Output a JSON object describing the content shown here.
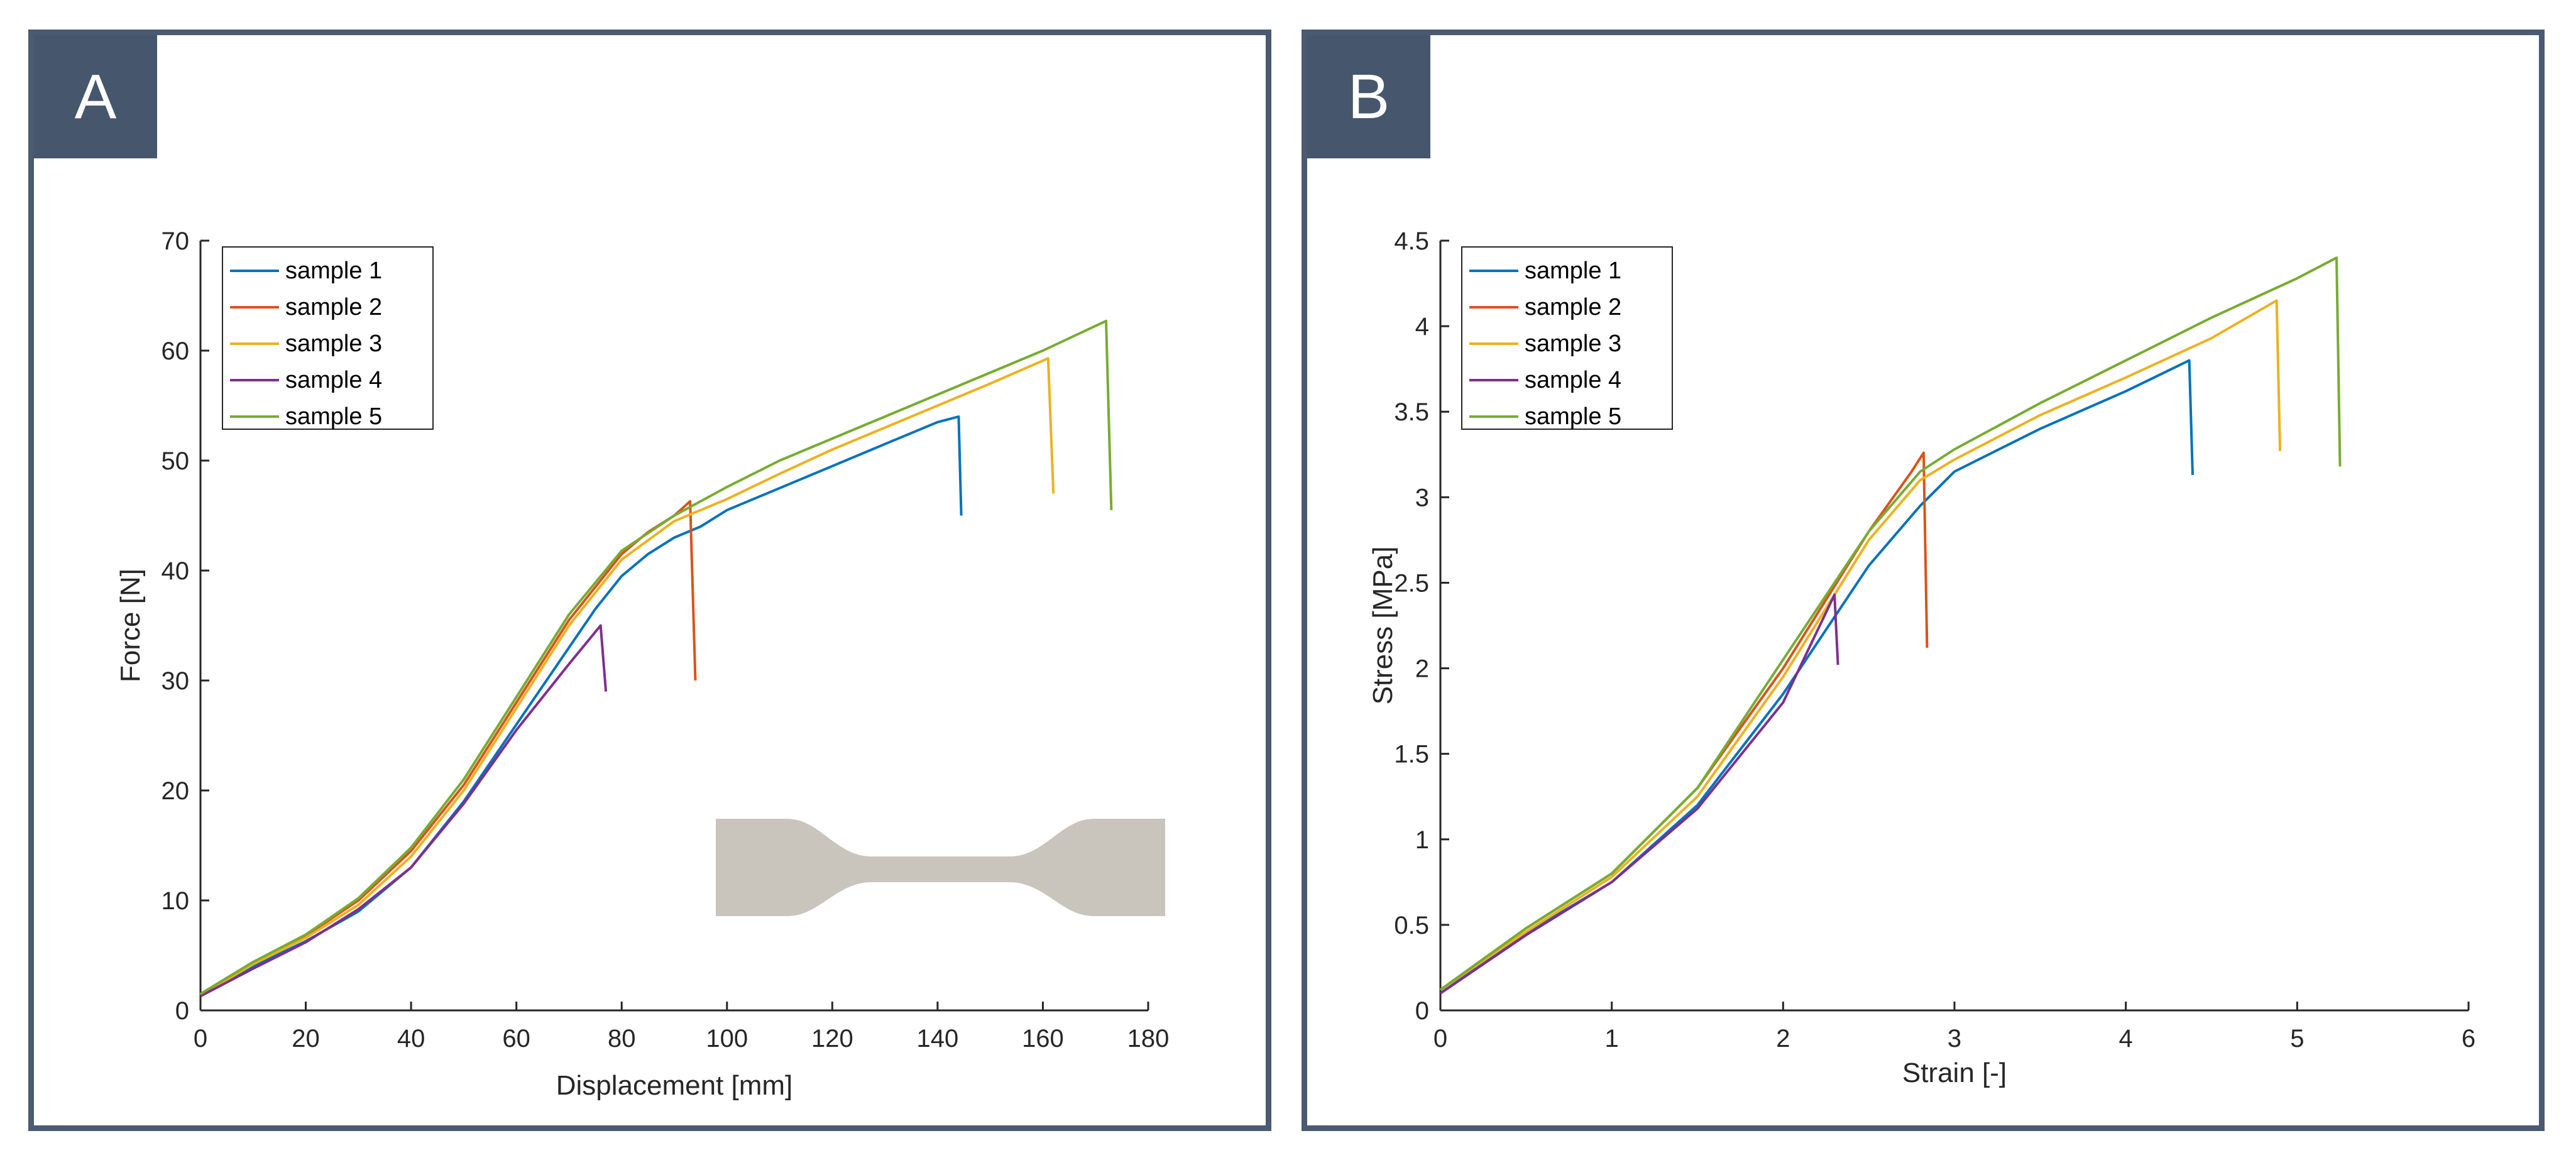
{
  "panels": [
    {
      "badge": "A"
    },
    {
      "badge": "B"
    }
  ],
  "colors": {
    "sample 1": "#0072BD",
    "sample 2": "#D95319",
    "sample 3": "#EDB120",
    "sample 4": "#7E2F8E",
    "sample 5": "#77AC30",
    "specimen": "#c9c5bd",
    "panel_border": "#4a5a72"
  },
  "chart_data": [
    {
      "type": "line",
      "panel": "A",
      "title": "",
      "xlabel": "Displacement [mm]",
      "ylabel": "Force [N]",
      "xlim": [
        0,
        180
      ],
      "ylim": [
        0,
        70
      ],
      "xticks": [
        "0",
        "20",
        "40",
        "60",
        "80",
        "100",
        "120",
        "140",
        "160",
        "180"
      ],
      "yticks": [
        "0",
        "10",
        "20",
        "30",
        "40",
        "50",
        "60",
        "70"
      ],
      "legend": [
        "sample 1",
        "sample 2",
        "sample 3",
        "sample 4",
        "sample 5"
      ],
      "legend_position": "top-left",
      "inset": "dog-bone specimen",
      "series": [
        {
          "name": "sample 1",
          "x": [
            0,
            10,
            20,
            30,
            40,
            50,
            60,
            70,
            75,
            80,
            85,
            90,
            95,
            100,
            110,
            120,
            130,
            140,
            144,
            144.5
          ],
          "y": [
            1.3,
            4,
            6.3,
            9,
            13,
            19,
            26,
            33,
            36.5,
            39.5,
            41.5,
            43,
            44,
            45.5,
            47.5,
            49.5,
            51.5,
            53.5,
            54,
            45
          ]
        },
        {
          "name": "sample 2",
          "x": [
            0,
            10,
            20,
            30,
            40,
            50,
            60,
            70,
            75,
            80,
            85,
            90,
            93,
            94
          ],
          "y": [
            1.5,
            4.4,
            6.8,
            10,
            14.5,
            20.5,
            28,
            35.5,
            38.5,
            41.5,
            43.5,
            45,
            46.3,
            30
          ]
        },
        {
          "name": "sample 3",
          "x": [
            0,
            10,
            20,
            30,
            40,
            50,
            60,
            70,
            80,
            90,
            95,
            100,
            110,
            120,
            130,
            140,
            150,
            161,
            162
          ],
          "y": [
            1.4,
            4.2,
            6.6,
            9.6,
            14,
            20,
            27.5,
            35,
            41,
            44.5,
            45.5,
            46.5,
            48.8,
            51,
            53,
            55,
            57,
            59.3,
            47
          ]
        },
        {
          "name": "sample 4",
          "x": [
            0,
            10,
            20,
            30,
            40,
            50,
            60,
            70,
            76,
            77
          ],
          "y": [
            1.3,
            3.8,
            6.2,
            9.2,
            13,
            18.8,
            25.5,
            31.5,
            35,
            29
          ]
        },
        {
          "name": "sample 5",
          "x": [
            0,
            10,
            20,
            30,
            40,
            50,
            60,
            70,
            80,
            90,
            95,
            100,
            110,
            120,
            130,
            140,
            150,
            160,
            172,
            173
          ],
          "y": [
            1.5,
            4.4,
            6.9,
            10.2,
            14.8,
            21,
            28.5,
            36,
            41.8,
            45,
            46.3,
            47.6,
            50,
            52,
            54,
            56,
            58,
            60,
            62.7,
            45.5
          ]
        }
      ]
    },
    {
      "type": "line",
      "panel": "B",
      "title": "",
      "xlabel": "Strain [-]",
      "ylabel": "Stress [MPa]",
      "xlim": [
        0,
        6
      ],
      "ylim": [
        0,
        4.5
      ],
      "xticks": [
        "0",
        "1",
        "2",
        "3",
        "4",
        "5",
        "6"
      ],
      "yticks": [
        "0",
        "0.5",
        "1",
        "1.5",
        "2",
        "2.5",
        "3",
        "3.5",
        "4",
        "4.5"
      ],
      "legend": [
        "sample 1",
        "sample 2",
        "sample 3",
        "sample 4",
        "sample 5"
      ],
      "legend_position": "top-left",
      "series": [
        {
          "name": "sample 1",
          "x": [
            0,
            0.5,
            1,
            1.5,
            2,
            2.5,
            2.8,
            3,
            3.5,
            4,
            4.37,
            4.39
          ],
          "y": [
            0.1,
            0.45,
            0.75,
            1.2,
            1.85,
            2.6,
            2.95,
            3.15,
            3.4,
            3.62,
            3.8,
            3.13
          ]
        },
        {
          "name": "sample 2",
          "x": [
            0,
            0.5,
            1,
            1.5,
            2,
            2.5,
            2.75,
            2.82,
            2.84
          ],
          "y": [
            0.12,
            0.48,
            0.8,
            1.3,
            2.0,
            2.8,
            3.15,
            3.26,
            2.12
          ]
        },
        {
          "name": "sample 3",
          "x": [
            0,
            0.5,
            1,
            1.5,
            2,
            2.5,
            2.8,
            3,
            3.5,
            4,
            4.5,
            4.88,
            4.9
          ],
          "y": [
            0.12,
            0.46,
            0.78,
            1.25,
            1.95,
            2.75,
            3.1,
            3.22,
            3.48,
            3.7,
            3.93,
            4.15,
            3.27
          ]
        },
        {
          "name": "sample 4",
          "x": [
            0,
            0.5,
            1,
            1.5,
            2,
            2.3,
            2.32
          ],
          "y": [
            0.1,
            0.44,
            0.75,
            1.18,
            1.8,
            2.43,
            2.02
          ]
        },
        {
          "name": "sample 5",
          "x": [
            0,
            0.5,
            1,
            1.5,
            2,
            2.5,
            2.8,
            3,
            3.5,
            4,
            4.5,
            5,
            5.23,
            5.25
          ],
          "y": [
            0.12,
            0.48,
            0.8,
            1.3,
            2.05,
            2.8,
            3.15,
            3.28,
            3.55,
            3.8,
            4.05,
            4.28,
            4.4,
            3.18
          ]
        }
      ]
    }
  ]
}
